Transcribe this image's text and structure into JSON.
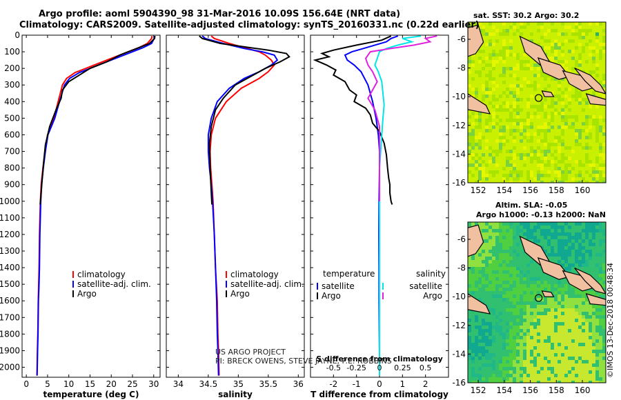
{
  "header": {
    "line1": "Argo profile: aoml 5904390_98 31-Mar-2016 10.09S 156.64E (NRT data)",
    "line2": "Climatology: CARS2009. Satellite-adjusted climatology: synTS_20160331.nc (0.22d earlier)"
  },
  "credit": {
    "line1": "US ARGO PROJECT",
    "line2": "PI: BRECK OWENS, STEVE JAYNE, P.E. ROBBINS"
  },
  "timestamp": "©IMOS 13-Dec-2018 00:48:34",
  "colors": {
    "climatology": "#ff0000",
    "satellite": "#0000ff",
    "argo": "#000000",
    "sat_salinity": "#00e5e5",
    "argo_salinity": "#e020e0",
    "land": "#f0c0a0"
  },
  "depth_axis": {
    "ylim": [
      2060,
      0
    ],
    "ticks": [
      0,
      100,
      200,
      300,
      400,
      500,
      600,
      700,
      800,
      900,
      1000,
      1100,
      1200,
      1300,
      1400,
      1500,
      1600,
      1700,
      1800,
      1900,
      2000
    ]
  },
  "chart_data": [
    {
      "type": "line",
      "id": "temperature",
      "xlabel": "temperature (deg C)",
      "xlim": [
        -1,
        31.5
      ],
      "xticks": [
        0,
        5,
        10,
        15,
        20,
        25,
        30
      ],
      "legend": {
        "position": "lower-center",
        "entries": [
          "climatology",
          "satellite-adj. clim.",
          "Argo"
        ]
      },
      "series": [
        {
          "name": "climatology",
          "color": "#ff0000",
          "x": [
            29.6,
            29.5,
            28.5,
            26.5,
            24.0,
            21.5,
            19.0,
            16.5,
            14.0,
            11.5,
            9.5,
            8.5,
            7.5,
            6.5,
            5.0,
            4.4,
            3.9,
            3.5,
            3.3,
            3.1,
            3.0,
            2.9,
            2.8,
            2.7,
            2.6,
            2.5
          ],
          "y": [
            5,
            20,
            50,
            75,
            100,
            125,
            150,
            175,
            200,
            225,
            260,
            300,
            400,
            500,
            600,
            700,
            800,
            900,
            1000,
            1200,
            1400,
            1500,
            1600,
            1800,
            1900,
            2050
          ]
        },
        {
          "name": "satellite-adj. clim.",
          "color": "#0000ff",
          "x": [
            30.2,
            30.1,
            29.5,
            27.5,
            25.0,
            22.5,
            20.0,
            17.5,
            15.0,
            12.5,
            10.2,
            9.0,
            7.8,
            6.7,
            5.1,
            4.5,
            4.0,
            3.6,
            3.4,
            3.2,
            3.1,
            3.0,
            2.85,
            2.75,
            2.65,
            2.55
          ],
          "y": [
            5,
            20,
            50,
            75,
            100,
            125,
            150,
            175,
            200,
            225,
            260,
            300,
            400,
            500,
            600,
            700,
            800,
            900,
            1000,
            1200,
            1400,
            1500,
            1600,
            1800,
            1900,
            2050
          ]
        },
        {
          "name": "Argo",
          "color": "#000000",
          "x": [
            30.3,
            30.2,
            29.0,
            26.0,
            24.0,
            22.0,
            20.5,
            19.0,
            17.0,
            15.0,
            12.5,
            10.0,
            8.5,
            8.2,
            7.0,
            5.5,
            4.5,
            4.1,
            3.7,
            3.4,
            3.25
          ],
          "y": [
            5,
            20,
            50,
            80,
            100,
            120,
            140,
            160,
            180,
            200,
            240,
            280,
            330,
            380,
            450,
            550,
            660,
            760,
            880,
            980,
            1020
          ]
        }
      ]
    },
    {
      "type": "line",
      "id": "salinity",
      "xlabel": "salinity",
      "xlim": [
        33.8,
        36.1
      ],
      "xticks": [
        34,
        34.5,
        35,
        35.5,
        36
      ],
      "legend": {
        "position": "lower-center",
        "entries": [
          "climatology",
          "satellite-adj. clim.",
          "Argo"
        ]
      },
      "series": [
        {
          "name": "climatology",
          "color": "#ff0000",
          "x": [
            34.55,
            34.6,
            34.85,
            35.15,
            35.35,
            35.45,
            35.55,
            35.6,
            35.5,
            35.35,
            35.05,
            34.8,
            34.62,
            34.55,
            34.53,
            34.54,
            34.56,
            34.58,
            34.6,
            34.62,
            34.65,
            34.66,
            34.67,
            34.68
          ],
          "y": [
            5,
            20,
            50,
            80,
            100,
            120,
            150,
            180,
            220,
            260,
            320,
            400,
            500,
            600,
            700,
            800,
            900,
            1000,
            1200,
            1400,
            1600,
            1800,
            1900,
            2050
          ]
        },
        {
          "name": "satellite-adj. clim.",
          "color": "#0000ff",
          "x": [
            34.4,
            34.45,
            34.75,
            35.1,
            35.4,
            35.6,
            35.65,
            35.55,
            35.35,
            35.1,
            34.85,
            34.65,
            34.55,
            34.5,
            34.5,
            34.52,
            34.55,
            34.57,
            34.6,
            34.62,
            34.64,
            34.65,
            34.66,
            34.67
          ],
          "y": [
            5,
            20,
            50,
            80,
            100,
            120,
            150,
            180,
            220,
            260,
            320,
            400,
            500,
            600,
            700,
            800,
            900,
            1000,
            1200,
            1400,
            1600,
            1800,
            1900,
            2050
          ]
        },
        {
          "name": "Argo",
          "color": "#000000",
          "x": [
            34.35,
            34.4,
            34.7,
            35.2,
            35.5,
            35.8,
            35.85,
            35.7,
            35.45,
            35.2,
            34.95,
            34.75,
            34.62,
            34.55,
            34.52,
            34.53,
            34.55,
            34.56
          ],
          "y": [
            5,
            20,
            50,
            75,
            90,
            110,
            130,
            160,
            200,
            250,
            300,
            380,
            450,
            550,
            650,
            800,
            950,
            1020
          ]
        }
      ]
    },
    {
      "type": "line",
      "id": "differences",
      "xlabel": "T difference from climatology",
      "xlim": [
        -3.0,
        3.0
      ],
      "xticks": [
        -2,
        -1,
        0,
        1,
        2
      ],
      "x2label": "S difference from climatology",
      "x2ticks": [
        -0.5,
        -0.25,
        0,
        0.25,
        0.5
      ],
      "legend": {
        "position": "lower-center",
        "titles": [
          "temperature",
          "salinity"
        ],
        "entries": [
          "satellite",
          "Argo",
          "satellite",
          "Argo"
        ]
      },
      "series": [
        {
          "name": "satellite",
          "group": "temperature",
          "color": "#0000ff",
          "x": [
            0.8,
            0.5,
            0.3,
            -0.2,
            -0.7,
            -1.2,
            -1.5,
            -1.4,
            -1.1,
            -0.8,
            -0.5,
            -0.3,
            -0.15,
            -0.05,
            0.0,
            0.0,
            -0.02,
            -0.03,
            -0.02,
            -0.02,
            -0.01,
            0.0,
            0.0
          ],
          "y": [
            5,
            20,
            40,
            60,
            80,
            100,
            120,
            150,
            180,
            220,
            300,
            400,
            500,
            600,
            700,
            800,
            1000,
            1200,
            1400,
            1600,
            1800,
            1950,
            2050
          ]
        },
        {
          "name": "Argo",
          "group": "temperature",
          "color": "#000000",
          "x": [
            0.5,
            0.1,
            -1.0,
            -2.0,
            -2.5,
            -2.2,
            -2.8,
            -2.3,
            -1.9,
            -2.0,
            -1.5,
            -1.3,
            -1.0,
            -1.1,
            -0.6,
            -0.4,
            -0.3,
            0.0,
            0.2,
            0.3,
            0.35,
            0.4,
            0.45,
            0.45,
            0.5,
            0.55
          ],
          "y": [
            5,
            30,
            60,
            90,
            110,
            130,
            150,
            180,
            210,
            240,
            280,
            330,
            360,
            400,
            440,
            480,
            530,
            580,
            650,
            720,
            800,
            860,
            900,
            950,
            1000,
            1020
          ]
        },
        {
          "name": "satellite",
          "group": "salinity",
          "color": "#00e5e5",
          "x": [
            1.8,
            1.0,
            1.4,
            0.8,
            0.3,
            0.0,
            -0.1,
            -0.2,
            -0.05,
            0.1,
            0.15,
            0.2,
            0.15,
            0.1,
            0.05,
            0.0,
            0.0,
            0.0
          ],
          "y": [
            5,
            20,
            40,
            60,
            80,
            100,
            140,
            180,
            220,
            280,
            350,
            420,
            500,
            600,
            700,
            800,
            1000,
            2050
          ]
        },
        {
          "name": "Argo",
          "group": "salinity",
          "color": "#e020e0",
          "x": [
            2.5,
            2.0,
            2.2,
            1.5,
            0.5,
            -0.4,
            -0.6,
            -0.5,
            -0.3,
            -0.1,
            -0.3,
            -0.5,
            -0.2,
            0.0,
            0.0,
            0.0
          ],
          "y": [
            5,
            20,
            40,
            60,
            80,
            100,
            140,
            180,
            220,
            280,
            330,
            380,
            450,
            550,
            700,
            1000
          ]
        }
      ]
    },
    {
      "type": "heatmap",
      "id": "map-sst",
      "title": "sat. SST: 30.2 Argo: 30.2",
      "xlim": [
        151.2,
        161.8
      ],
      "ylim": [
        -16,
        -4.8
      ],
      "xticks": [
        152,
        154,
        156,
        158,
        160
      ],
      "yticks": [
        -6,
        -8,
        -10,
        -12,
        -14,
        -16
      ],
      "profile_location": [
        156.64,
        -10.09
      ],
      "colors": [
        "#c8f000",
        "#a8e400",
        "#e6f500",
        "#7cd23c",
        "#30b060",
        "#1e8acc"
      ]
    },
    {
      "type": "heatmap",
      "id": "map-sla",
      "title": "Altim. SLA: -0.05",
      "subtitle": "Argo h1000: -0.13 h2000: NaN",
      "xlim": [
        151.2,
        161.8
      ],
      "ylim": [
        -16,
        -4.8
      ],
      "xticks": [
        152,
        154,
        156,
        158,
        160
      ],
      "yticks": [
        -6,
        -8,
        -10,
        -12,
        -14,
        -16
      ],
      "profile_location": [
        156.64,
        -10.09
      ],
      "colors": [
        "#30c070",
        "#50d040",
        "#20b888",
        "#90e040",
        "#c8e830",
        "#10a890"
      ]
    }
  ]
}
